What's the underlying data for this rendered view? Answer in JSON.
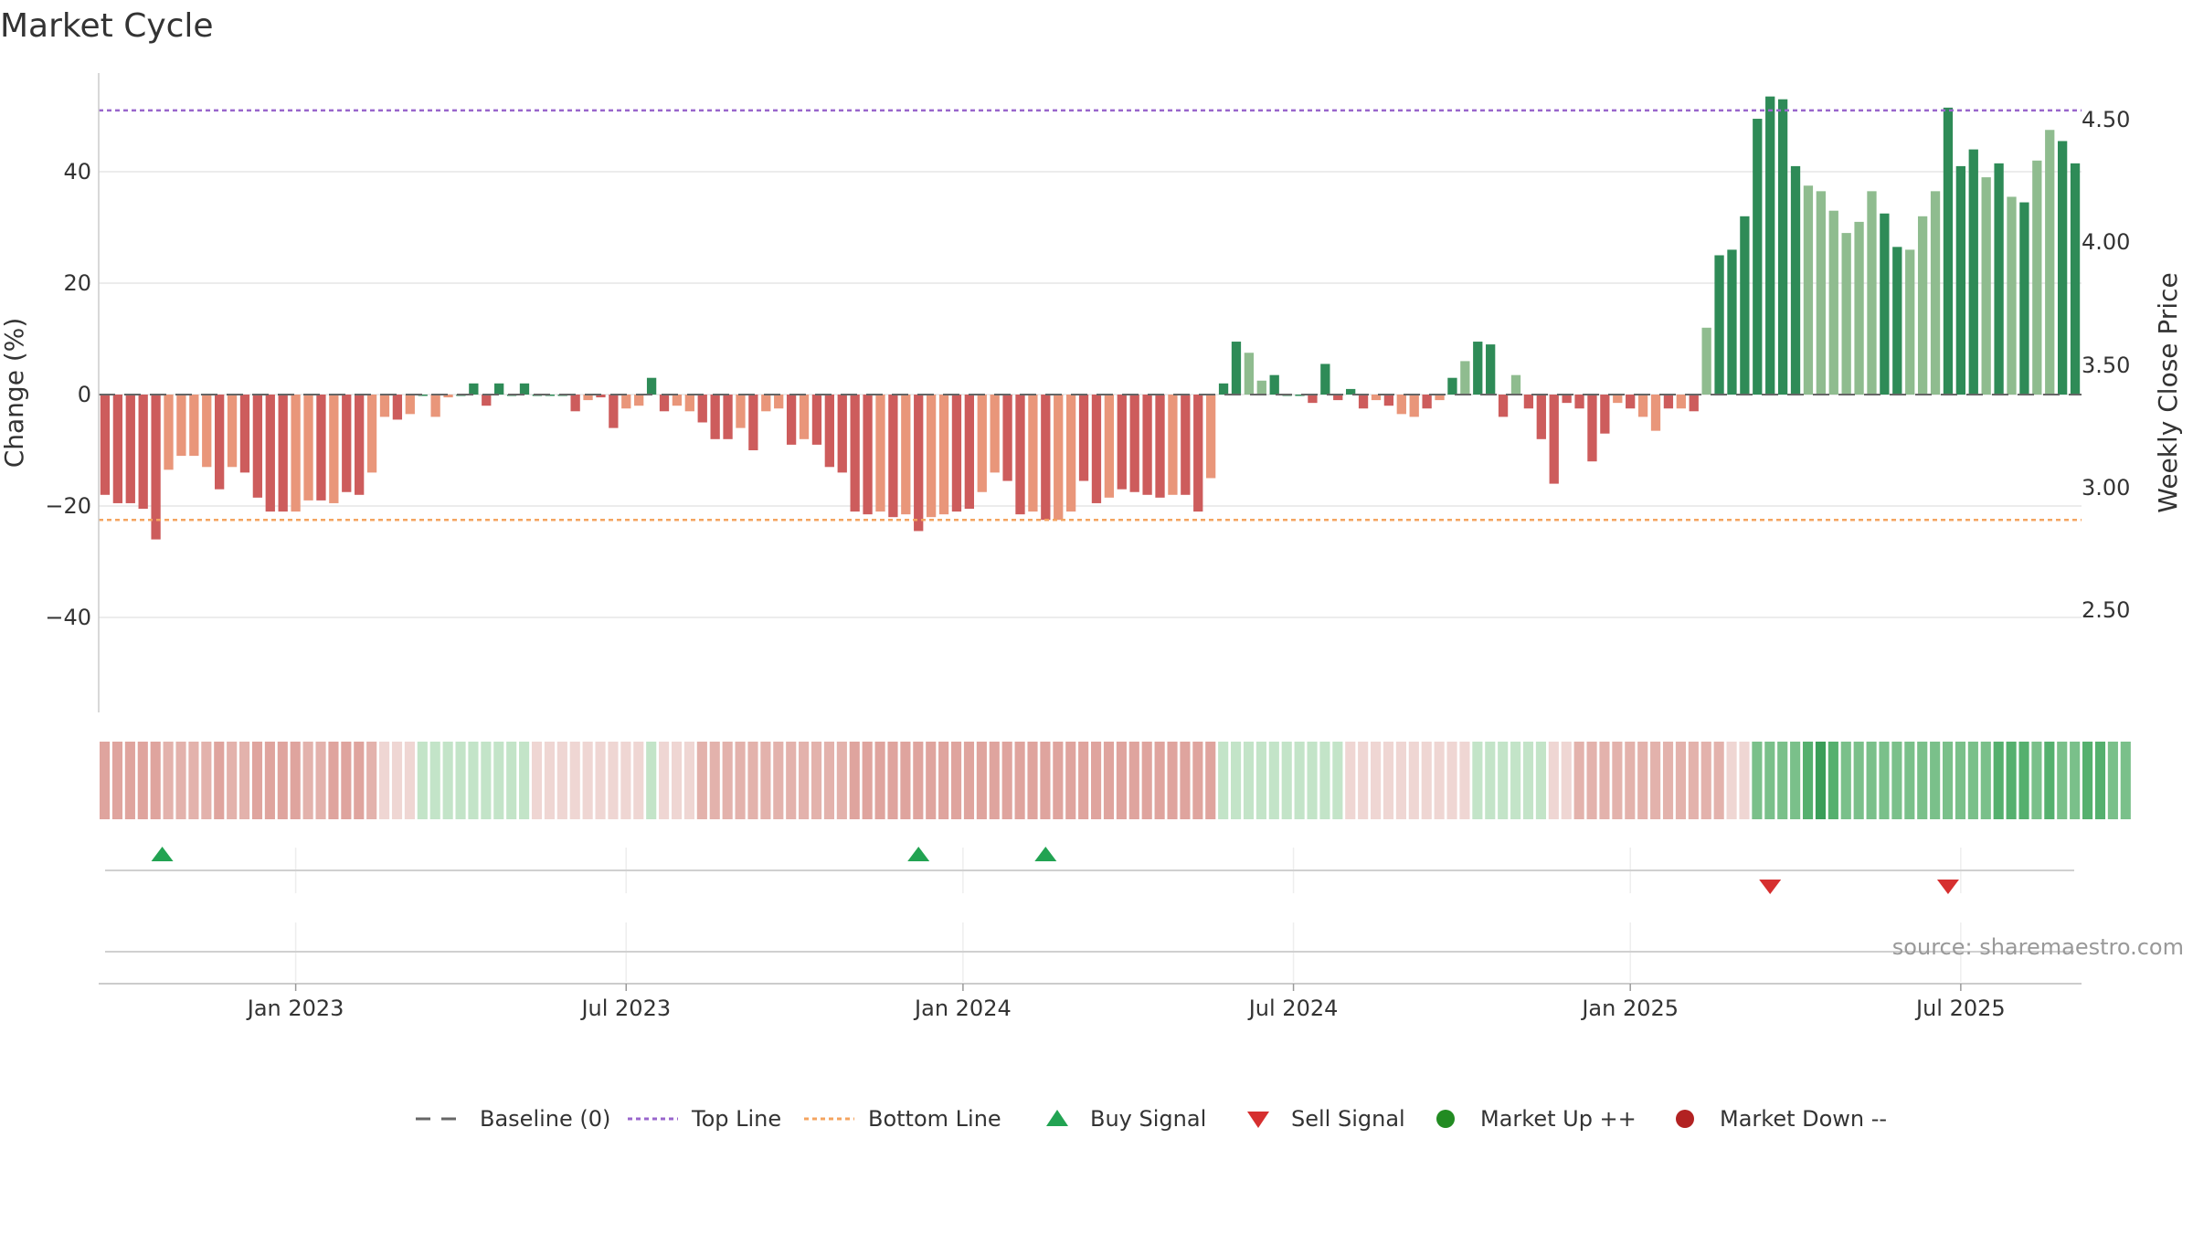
{
  "title": "Market Cycle",
  "source": "source: sharemaestro.com",
  "colors": {
    "red_dark": "#cd5c5c",
    "red_light": "#e9967a",
    "green_dark": "#2e8b57",
    "green_light": "#8fbc8f",
    "top_line": "#9966cc",
    "bottom_line": "#f4a460",
    "buy": "#22a352",
    "sell": "#d62f2f",
    "market_up": "#228b22",
    "market_down": "#b22222",
    "baseline": "#666666"
  },
  "legend": [
    {
      "key": "baseline",
      "label": "Baseline (0)"
    },
    {
      "key": "top",
      "label": "Top Line"
    },
    {
      "key": "bottom",
      "label": "Bottom Line"
    },
    {
      "key": "buy",
      "label": "Buy Signal"
    },
    {
      "key": "sell",
      "label": "Sell Signal"
    },
    {
      "key": "up",
      "label": "Market Up ++"
    },
    {
      "key": "down",
      "label": "Market Down --"
    }
  ],
  "chart_data": {
    "type": "bar",
    "title": "Market Cycle",
    "ylabel": "Change (%)",
    "y2label": "Weekly Close Price",
    "ylim": [
      -57,
      57
    ],
    "y_ticks": [
      -40,
      -20,
      0,
      20,
      40
    ],
    "y2_ticks": [
      "2.50",
      "3.00",
      "3.50",
      "4.00",
      "4.50"
    ],
    "top_line": 51,
    "bottom_line": -22.5,
    "x_tick_labels": [
      "Jan 2023",
      "Jul 2023",
      "Jan 2024",
      "Jul 2024",
      "Jan 2025",
      "Jul 2025"
    ],
    "x_tick_index": [
      15.5,
      41.5,
      68,
      94,
      120.5,
      146.5
    ],
    "weekly_change": [
      -18,
      -19.5,
      -19.5,
      -20.5,
      -26,
      -13.5,
      -11,
      -11,
      -13,
      -17,
      -13,
      -14,
      -18.5,
      -21,
      -21,
      -21,
      -19,
      -19,
      -19.5,
      -17.5,
      -18,
      -14,
      -4,
      -4.5,
      -3.5,
      0,
      -4,
      -0.5,
      0,
      2,
      -2,
      2,
      0,
      2,
      0,
      0,
      0,
      -3,
      -1,
      -0.5,
      -6,
      -2.5,
      -2,
      3,
      -3,
      -2,
      -3,
      -5,
      -8,
      -8,
      -6,
      -10,
      -3,
      -2.5,
      -9,
      -8,
      -9,
      -13,
      -14,
      -21,
      -21.5,
      -21,
      -22,
      -21.5,
      -24.5,
      -22,
      -21.5,
      -21,
      -20.5,
      -17.5,
      -14,
      -15.5,
      -21.5,
      -21,
      -22.5,
      -22.5,
      -21,
      -15.5,
      -19.5,
      -18.5,
      -17,
      -17.5,
      -18,
      -18.5,
      -18,
      -18,
      -21,
      -15,
      2,
      9.5,
      7.5,
      2.5,
      3.5,
      0,
      0,
      -1.5,
      5.5,
      -1,
      1,
      -2.5,
      -1,
      -2,
      -3.5,
      -4,
      -2.5,
      -1,
      3,
      6,
      9.5,
      9,
      -4,
      3.5,
      -2.5,
      -8,
      -16,
      -1.5,
      -2.5,
      -12,
      -7,
      -1.5,
      -2.5,
      -4,
      -6.5,
      -2.5,
      -2.5,
      -3,
      12,
      25,
      26,
      32,
      49.5,
      53.5,
      53,
      41,
      37.5,
      36.5,
      33,
      29,
      31,
      36.5,
      32.5,
      26.5,
      26,
      32,
      36.5,
      51.5,
      41,
      44,
      39,
      41.5,
      35.5,
      34.5,
      42,
      47.5,
      45.5,
      41.5
    ],
    "shade": [
      1,
      1,
      1,
      1,
      1,
      0,
      0,
      0,
      0,
      1,
      0,
      1,
      1,
      1,
      1,
      0,
      0,
      1,
      0,
      1,
      1,
      0,
      0,
      1,
      0,
      1,
      0,
      0,
      1,
      1,
      1,
      1,
      1,
      1,
      1,
      1,
      1,
      1,
      0,
      1,
      1,
      0,
      0,
      1,
      1,
      0,
      0,
      1,
      1,
      1,
      0,
      1,
      0,
      0,
      1,
      0,
      1,
      1,
      1,
      1,
      1,
      0,
      1,
      0,
      1,
      0,
      0,
      1,
      1,
      0,
      0,
      1,
      1,
      0,
      1,
      0,
      0,
      1,
      1,
      0,
      1,
      1,
      1,
      1,
      0,
      1,
      1,
      0,
      1,
      1,
      0,
      0,
      1,
      1,
      1,
      1,
      1,
      1,
      1,
      1,
      0,
      1,
      0,
      0,
      1,
      0,
      1,
      0,
      1,
      1,
      1,
      0,
      1,
      1,
      1,
      1,
      1,
      1,
      1,
      0,
      1,
      0,
      0,
      1,
      0,
      1,
      0,
      1,
      1,
      1,
      1,
      1,
      1,
      1,
      0,
      0,
      0,
      0,
      0,
      0,
      1,
      1,
      0,
      0,
      0,
      1,
      1,
      1,
      0,
      1,
      0,
      1,
      0,
      0,
      1,
      1,
      0,
      0
    ],
    "heat_strip": [
      4,
      4,
      4,
      4,
      4,
      3,
      3,
      3,
      3,
      4,
      3,
      3,
      4,
      4,
      4,
      4,
      3,
      3,
      4,
      4,
      4,
      3,
      2,
      2,
      2,
      1,
      1,
      1,
      1,
      1,
      1,
      1,
      1,
      1,
      2,
      2,
      2,
      2,
      2,
      2,
      2,
      2,
      2,
      1,
      2,
      2,
      2,
      3,
      3,
      3,
      3,
      3,
      3,
      3,
      3,
      3,
      3,
      3,
      3,
      4,
      4,
      4,
      4,
      4,
      4,
      4,
      4,
      4,
      4,
      4,
      4,
      4,
      4,
      4,
      4,
      4,
      4,
      4,
      4,
      4,
      4,
      4,
      4,
      4,
      4,
      4,
      4,
      4,
      1,
      1,
      1,
      1,
      1,
      1,
      1,
      1,
      1,
      1,
      2,
      2,
      2,
      2,
      2,
      2,
      2,
      2,
      2,
      2,
      1,
      1,
      1,
      1,
      1,
      1,
      2,
      2,
      3,
      3,
      3,
      3,
      3,
      3,
      3,
      3,
      3,
      3,
      3,
      3,
      2,
      2,
      5,
      5,
      5,
      5,
      6,
      7,
      6,
      5,
      5,
      5,
      5,
      5,
      5,
      5,
      5,
      5,
      5,
      5,
      5,
      6,
      6,
      6,
      5,
      6,
      5,
      5,
      6,
      6,
      5,
      5
    ],
    "buy_signals": [
      4.5,
      64,
      74
    ],
    "sell_signals": [
      131,
      145
    ]
  }
}
